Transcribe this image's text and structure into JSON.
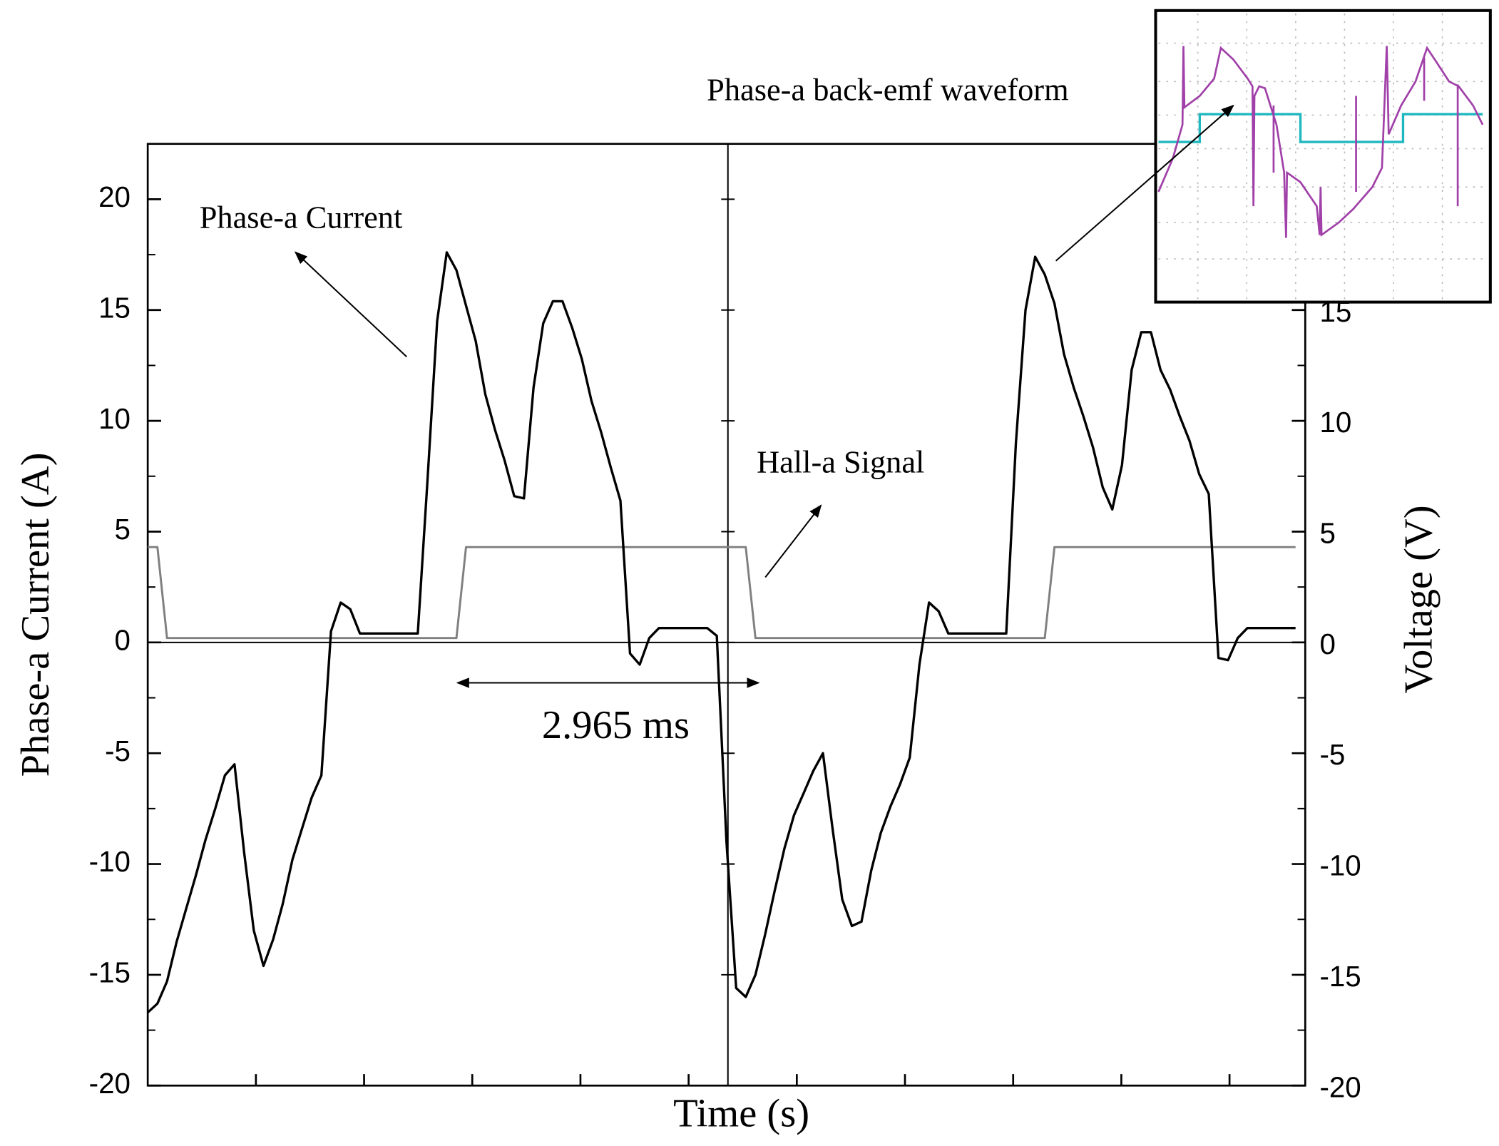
{
  "chart_data": {
    "type": "line",
    "x_label": "Time (s)",
    "y_label": "Phase-a Current (A)",
    "y2_label": "Voltage (V)",
    "categories": [
      null,
      null,
      null,
      null,
      null,
      null,
      null,
      null,
      null,
      null,
      null,
      null,
      null,
      null,
      null,
      null,
      null,
      null,
      null,
      null,
      null,
      null,
      null,
      null,
      null,
      null,
      null,
      null,
      null,
      null,
      null,
      null,
      null,
      null,
      null,
      null,
      null,
      null,
      null,
      null,
      null,
      null,
      null,
      null,
      null,
      null,
      null,
      null,
      null,
      null,
      null,
      null,
      null,
      null,
      null,
      null,
      null,
      null,
      null,
      null,
      null,
      null,
      null,
      null,
      null,
      null,
      null,
      null,
      null,
      null,
      null,
      null,
      null,
      null,
      null,
      null,
      null,
      null,
      null,
      null,
      null,
      null,
      null,
      null,
      null,
      null,
      null,
      null,
      null,
      null,
      null,
      null,
      null,
      null,
      null,
      null,
      null,
      null,
      null,
      null,
      null,
      null,
      null,
      null,
      null,
      null,
      null,
      null,
      null,
      null,
      null,
      null,
      null,
      null,
      null,
      null,
      null,
      null,
      null,
      null,
      null
    ],
    "series": [
      {
        "name": "Phase-a Current",
        "color": "#000000",
        "values": [
          -16.7,
          -16.3,
          -15.3,
          -13.5,
          -12.0,
          -10.5,
          -8.9,
          -7.5,
          -6.0,
          -5.5,
          -9.5,
          -13.0,
          -14.6,
          -13.4,
          -11.8,
          -9.8,
          -8.4,
          -7.0,
          -6.0,
          0.5,
          1.8,
          1.5,
          0.4,
          0.4,
          0.4,
          0.4,
          0.4,
          0.4,
          0.4,
          7.3,
          14.5,
          17.6,
          16.8,
          15.2,
          13.6,
          11.2,
          9.6,
          8.2,
          6.6,
          6.5,
          11.5,
          14.4,
          15.4,
          15.4,
          14.2,
          12.8,
          10.9,
          9.5,
          7.9,
          6.4,
          -0.5,
          -1.0,
          0.2,
          0.65,
          0.65,
          0.65,
          0.65,
          0.65,
          0.65,
          0.3,
          -9.0,
          -15.6,
          -16.0,
          -15.0,
          -13.2,
          -11.2,
          -9.3,
          -7.8,
          -6.8,
          -5.8,
          -5.0,
          -8.4,
          -11.6,
          -12.8,
          -12.6,
          -10.3,
          -8.6,
          -7.4,
          -6.4,
          -5.2,
          -1.0,
          1.8,
          1.4,
          0.4,
          0.4,
          0.4,
          0.4,
          0.4,
          0.4,
          0.4,
          9.0,
          15.0,
          17.4,
          16.6,
          15.3,
          13.0,
          11.5,
          10.2,
          8.8,
          7.0,
          6.0,
          8.0,
          12.3,
          14.0,
          14.0,
          12.3,
          11.4,
          10.2,
          9.1,
          7.6,
          6.7,
          -0.7,
          -0.8,
          0.2,
          0.65,
          0.65,
          0.65,
          0.65,
          0.65,
          0.65,
          null
        ]
      },
      {
        "name": "Hall-a Signal",
        "color": "#808080",
        "axis": "y2",
        "values": [
          4.3,
          4.3,
          0.2,
          0.2,
          0.2,
          0.2,
          0.2,
          0.2,
          0.2,
          0.2,
          0.2,
          0.2,
          0.2,
          0.2,
          0.2,
          0.2,
          0.2,
          0.2,
          0.2,
          0.2,
          0.2,
          0.2,
          0.2,
          0.2,
          0.2,
          0.2,
          0.2,
          0.2,
          0.2,
          0.2,
          0.2,
          0.2,
          0.2,
          4.3,
          4.3,
          4.3,
          4.3,
          4.3,
          4.3,
          4.3,
          4.3,
          4.3,
          4.3,
          4.3,
          4.3,
          4.3,
          4.3,
          4.3,
          4.3,
          4.3,
          4.3,
          4.3,
          4.3,
          4.3,
          4.3,
          4.3,
          4.3,
          4.3,
          4.3,
          4.3,
          4.3,
          4.3,
          4.3,
          0.2,
          0.2,
          0.2,
          0.2,
          0.2,
          0.2,
          0.2,
          0.2,
          0.2,
          0.2,
          0.2,
          0.2,
          0.2,
          0.2,
          0.2,
          0.2,
          0.2,
          0.2,
          0.2,
          0.2,
          0.2,
          0.2,
          0.2,
          0.2,
          0.2,
          0.2,
          0.2,
          0.2,
          0.2,
          0.2,
          0.2,
          4.3,
          4.3,
          4.3,
          4.3,
          4.3,
          4.3,
          4.3,
          4.3,
          4.3,
          4.3,
          4.3,
          4.3,
          4.3,
          4.3,
          4.3,
          4.3,
          4.3,
          4.3,
          4.3,
          4.3,
          4.3,
          4.3,
          4.3,
          4.3,
          4.3,
          4.3,
          null
        ]
      }
    ],
    "ylim": [
      -20,
      22.5
    ],
    "yticks": [
      -20,
      -15,
      -10,
      -5,
      0,
      5,
      10,
      15,
      20
    ],
    "y2lim": [
      -20,
      22.5
    ],
    "y2ticks": [
      -20,
      -15,
      -10,
      -5,
      0,
      5,
      10,
      15
    ],
    "annotations": [
      "Phase-a back-emf waveform",
      "2.965 ms"
    ]
  }
}
